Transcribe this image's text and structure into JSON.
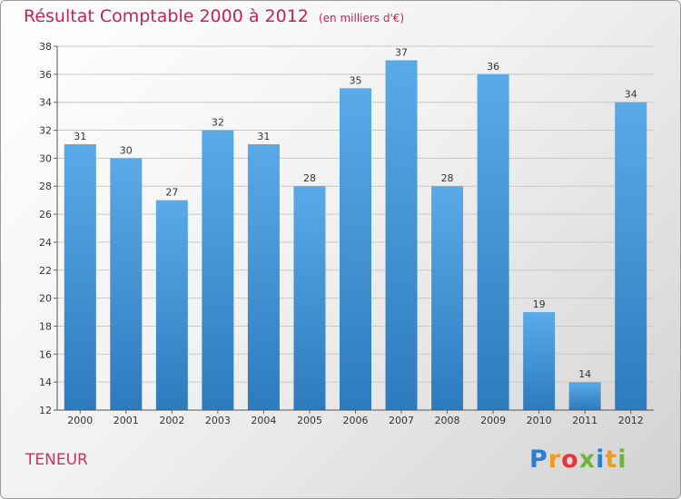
{
  "header": {
    "title": "Résultat Comptable 2000 à 2012",
    "unit": "(en milliers d'€)"
  },
  "commune": "TENEUR",
  "logo": {
    "letters": [
      "P",
      "r",
      "o",
      "x",
      "i",
      "t",
      "i"
    ],
    "colors": [
      "#2b7fd0",
      "#f39a1c",
      "#e8353a",
      "#6fb43a",
      "#2b7fd0",
      "#f39a1c",
      "#6fb43a"
    ]
  },
  "colors": {
    "bar": "#5aaae8",
    "bar_dark": "#2d7bbd",
    "title": "#c8205a",
    "grid": "#c8c8c8"
  },
  "chart_data": {
    "type": "bar",
    "title": "Résultat Comptable 2000 à 2012",
    "xlabel": "",
    "ylabel": "(en milliers d'€)",
    "categories": [
      "2000",
      "2001",
      "2002",
      "2003",
      "2004",
      "2005",
      "2006",
      "2007",
      "2008",
      "2009",
      "2010",
      "2011",
      "2012"
    ],
    "values": [
      31,
      30,
      27,
      32,
      31,
      28,
      35,
      37,
      28,
      36,
      19,
      14,
      34
    ],
    "ylim": [
      12,
      38
    ],
    "yticks": [
      12,
      14,
      16,
      18,
      20,
      22,
      24,
      26,
      28,
      30,
      32,
      34,
      36,
      38
    ],
    "grid": true
  }
}
